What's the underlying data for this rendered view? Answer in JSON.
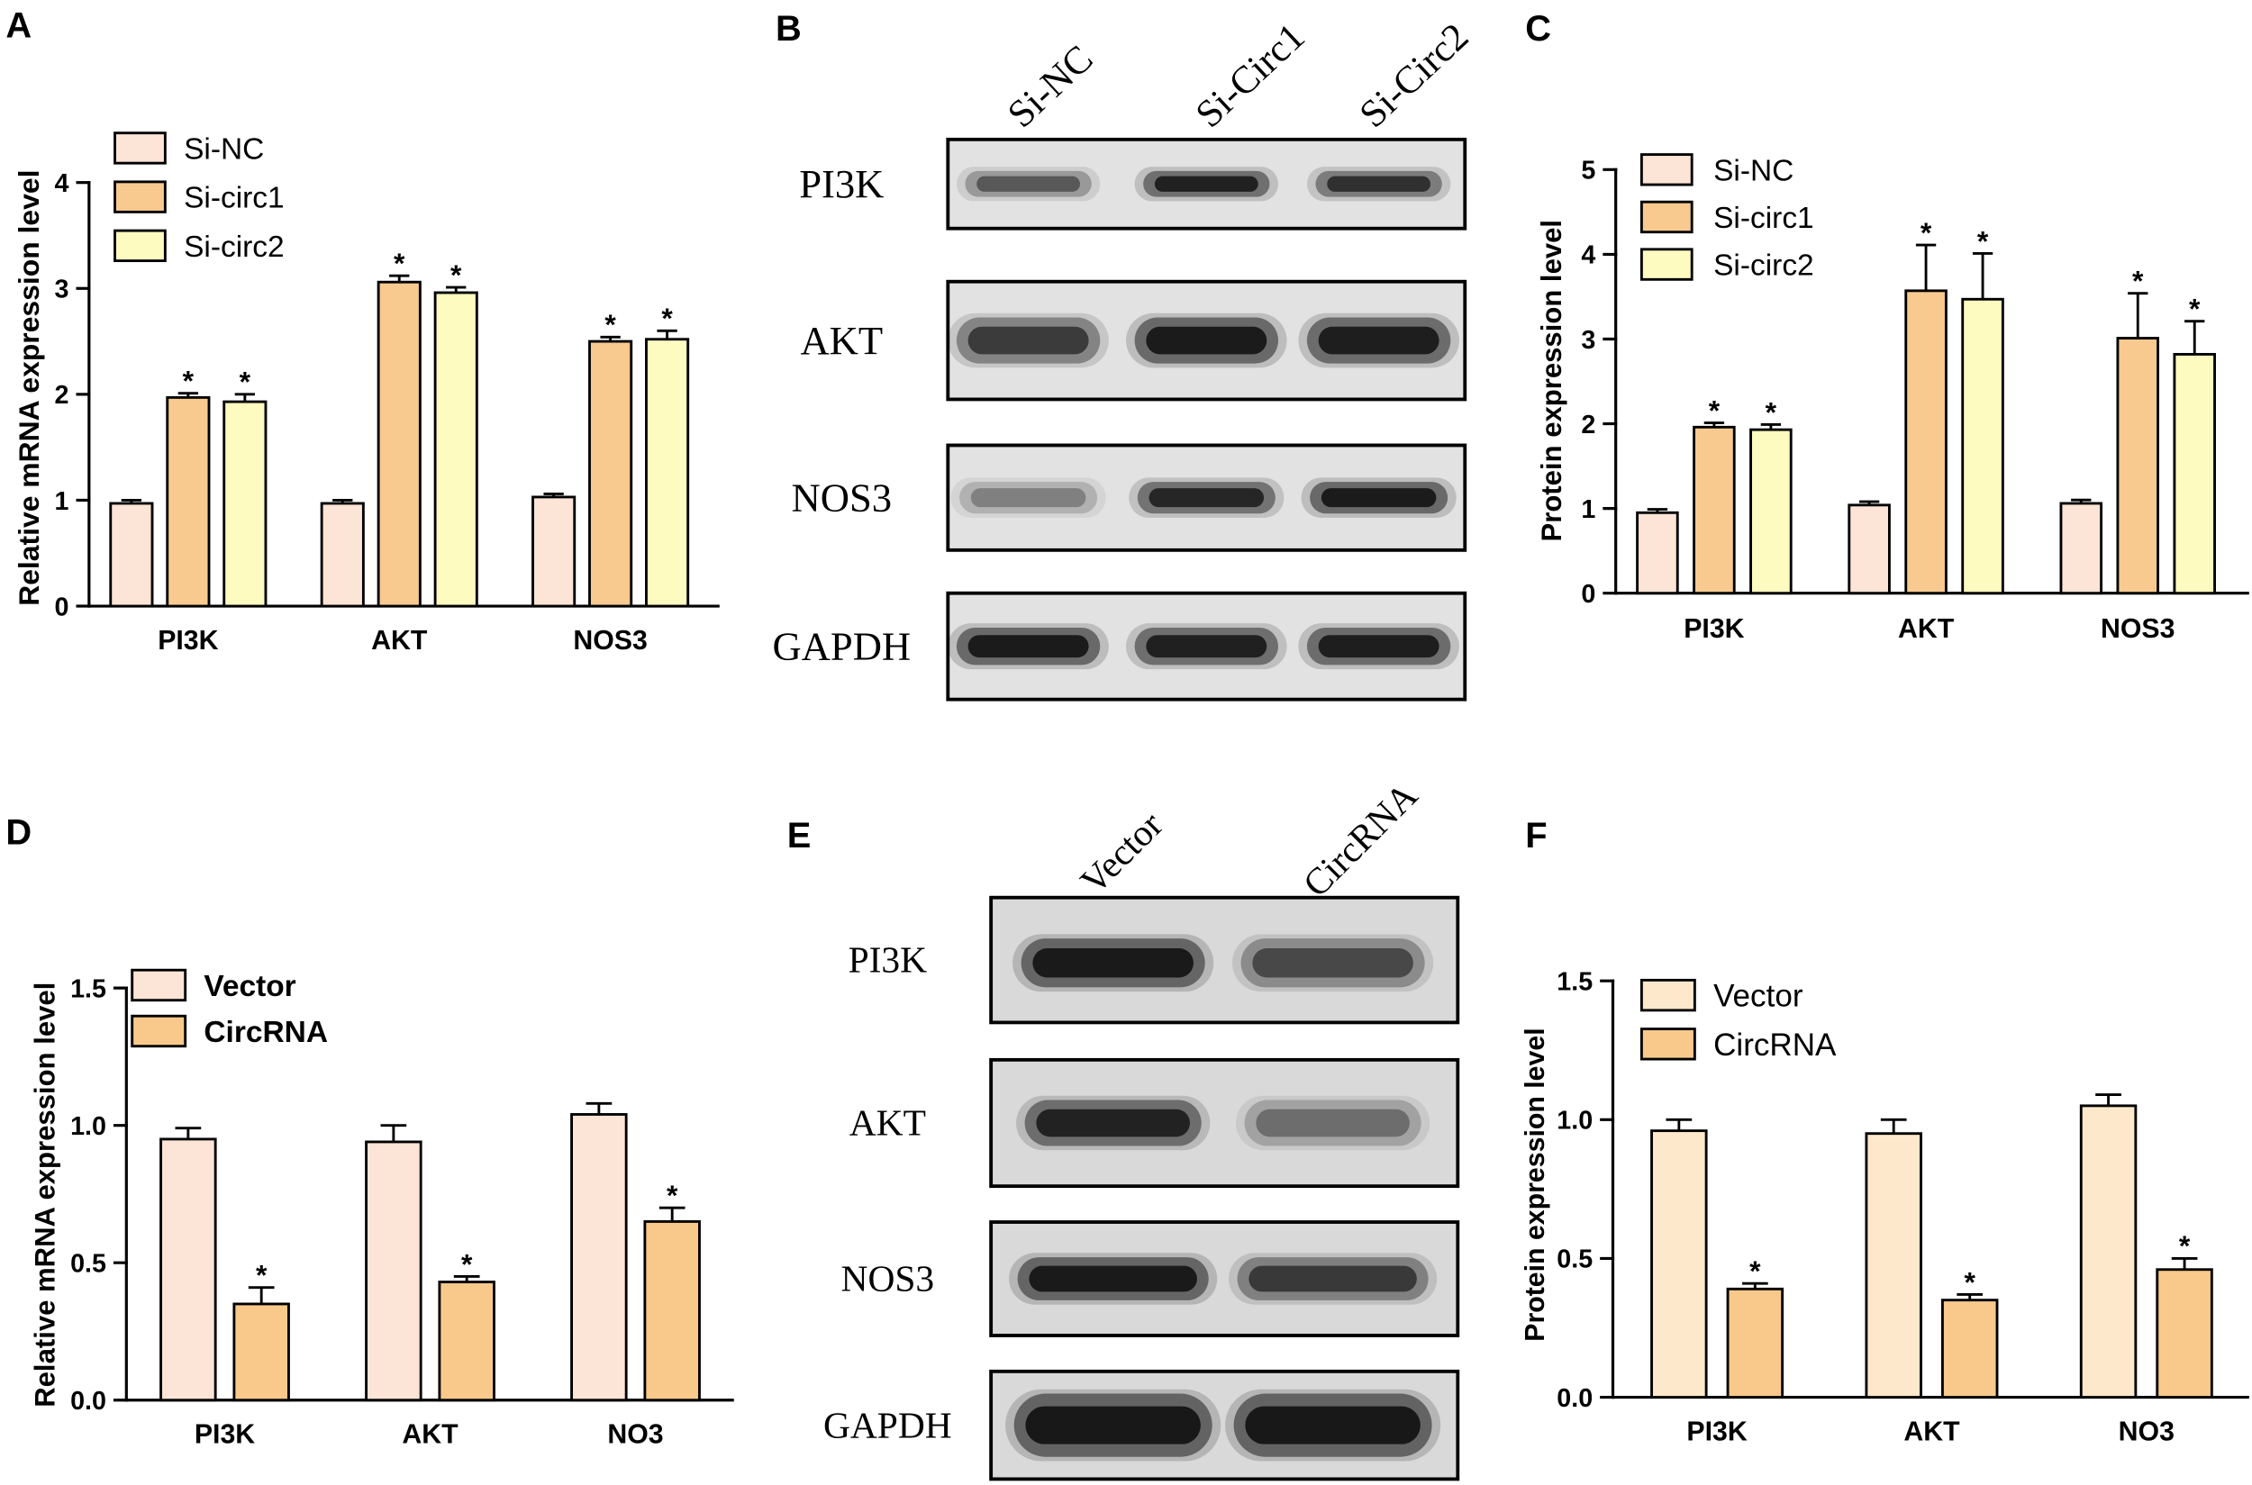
{
  "panel_labels": {
    "a": "A",
    "b": "B",
    "c": "C",
    "d": "D",
    "e": "E",
    "f": "F"
  },
  "blots": [
    {
      "lanes": [
        "Si-NC",
        "Si-Circ1",
        "Si-Circ2"
      ],
      "rows": [
        {
          "label": "PI3K",
          "band_intensity": [
            0.55,
            0.92,
            0.8
          ]
        },
        {
          "label": "AKT",
          "band_intensity": [
            0.72,
            0.97,
            0.95
          ]
        },
        {
          "label": "NOS3",
          "band_intensity": [
            0.35,
            0.88,
            0.97
          ]
        },
        {
          "label": "GAPDH",
          "band_intensity": [
            0.97,
            0.93,
            0.95
          ]
        }
      ]
    },
    {
      "lanes": [
        "Vector",
        "CircRNA"
      ],
      "rows": [
        {
          "label": "PI3K",
          "band_intensity": [
            0.97,
            0.62
          ]
        },
        {
          "label": "AKT",
          "band_intensity": [
            0.9,
            0.42
          ]
        },
        {
          "label": "NOS3",
          "band_intensity": [
            0.97,
            0.72
          ]
        },
        {
          "label": "GAPDH",
          "band_intensity": [
            1.0,
            1.0
          ]
        }
      ]
    }
  ],
  "chart_data": [
    {
      "type": "bar",
      "ylabel": "Relative mRNA expression level",
      "categories": [
        "PI3K",
        "AKT",
        "NOS3"
      ],
      "ylim": [
        0,
        4
      ],
      "yticks": [
        0,
        1,
        2,
        3,
        4
      ],
      "ytick_labels": [
        "0",
        "1",
        "2",
        "3",
        "4"
      ],
      "legend": "top-left",
      "series": [
        {
          "name": "Si-NC",
          "color": "#FCE4D6",
          "values": [
            0.97,
            0.97,
            1.03
          ],
          "errors": [
            0.03,
            0.03,
            0.03
          ]
        },
        {
          "name": "Si-circ1",
          "color": "#F8CA8F",
          "values": [
            1.97,
            3.06,
            2.5
          ],
          "errors": [
            0.04,
            0.06,
            0.04
          ],
          "marks": [
            "*",
            "*",
            "*"
          ]
        },
        {
          "name": "Si-circ2",
          "color": "#FEFBC0",
          "values": [
            1.93,
            2.96,
            2.52
          ],
          "errors": [
            0.07,
            0.05,
            0.08
          ],
          "marks": [
            "*",
            "*",
            "*"
          ]
        }
      ]
    },
    {
      "type": "bar",
      "ylabel": "Protein expression level",
      "categories": [
        "PI3K",
        "AKT",
        "NOS3"
      ],
      "ylim": [
        0,
        5
      ],
      "yticks": [
        0,
        1,
        2,
        3,
        4,
        5
      ],
      "ytick_labels": [
        "0",
        "1",
        "2",
        "3",
        "4",
        "5"
      ],
      "legend": "top-left",
      "series": [
        {
          "name": "Si-NC",
          "color": "#FCE4D6",
          "values": [
            0.95,
            1.04,
            1.06
          ],
          "errors": [
            0.04,
            0.04,
            0.04
          ]
        },
        {
          "name": "Si-circ1",
          "color": "#F8CA8F",
          "values": [
            1.96,
            3.57,
            3.01
          ],
          "errors": [
            0.05,
            0.54,
            0.53
          ],
          "marks": [
            "*",
            "*",
            "*"
          ]
        },
        {
          "name": "Si-circ2",
          "color": "#FEFBC0",
          "values": [
            1.93,
            3.47,
            2.82
          ],
          "errors": [
            0.06,
            0.54,
            0.39
          ],
          "marks": [
            "*",
            "*",
            "*"
          ]
        }
      ]
    },
    {
      "type": "bar",
      "ylabel": "Relative mRNA expression level",
      "categories": [
        "PI3K",
        "AKT",
        "NO3"
      ],
      "ylim": [
        0,
        1.5
      ],
      "yticks": [
        0,
        0.5,
        1.0,
        1.5
      ],
      "ytick_labels": [
        "0.0",
        "0.5",
        "1.0",
        "1.5"
      ],
      "legend": "top-left",
      "series": [
        {
          "name": "Vector",
          "color": "#FCE4D6",
          "values": [
            0.95,
            0.94,
            1.04
          ],
          "errors": [
            0.04,
            0.06,
            0.04
          ]
        },
        {
          "name": "CircRNA",
          "color": "#F8C98A",
          "values": [
            0.35,
            0.43,
            0.65
          ],
          "errors": [
            0.06,
            0.02,
            0.05
          ],
          "marks": [
            "*",
            "*",
            "*"
          ]
        }
      ]
    },
    {
      "type": "bar",
      "ylabel": "Protein expression level",
      "categories": [
        "PI3K",
        "AKT",
        "NO3"
      ],
      "ylim": [
        0,
        1.5
      ],
      "yticks": [
        0,
        0.5,
        1.0,
        1.5
      ],
      "ytick_labels": [
        "0.0",
        "0.5",
        "1.0",
        "1.5"
      ],
      "legend": "top-left",
      "series": [
        {
          "name": "Vector",
          "color": "#FDE8CC",
          "values": [
            0.96,
            0.95,
            1.05
          ],
          "errors": [
            0.04,
            0.05,
            0.04
          ]
        },
        {
          "name": "CircRNA",
          "color": "#F8C98A",
          "values": [
            0.39,
            0.35,
            0.46
          ],
          "errors": [
            0.02,
            0.02,
            0.04
          ],
          "marks": [
            "*",
            "*",
            "*"
          ]
        }
      ]
    }
  ]
}
